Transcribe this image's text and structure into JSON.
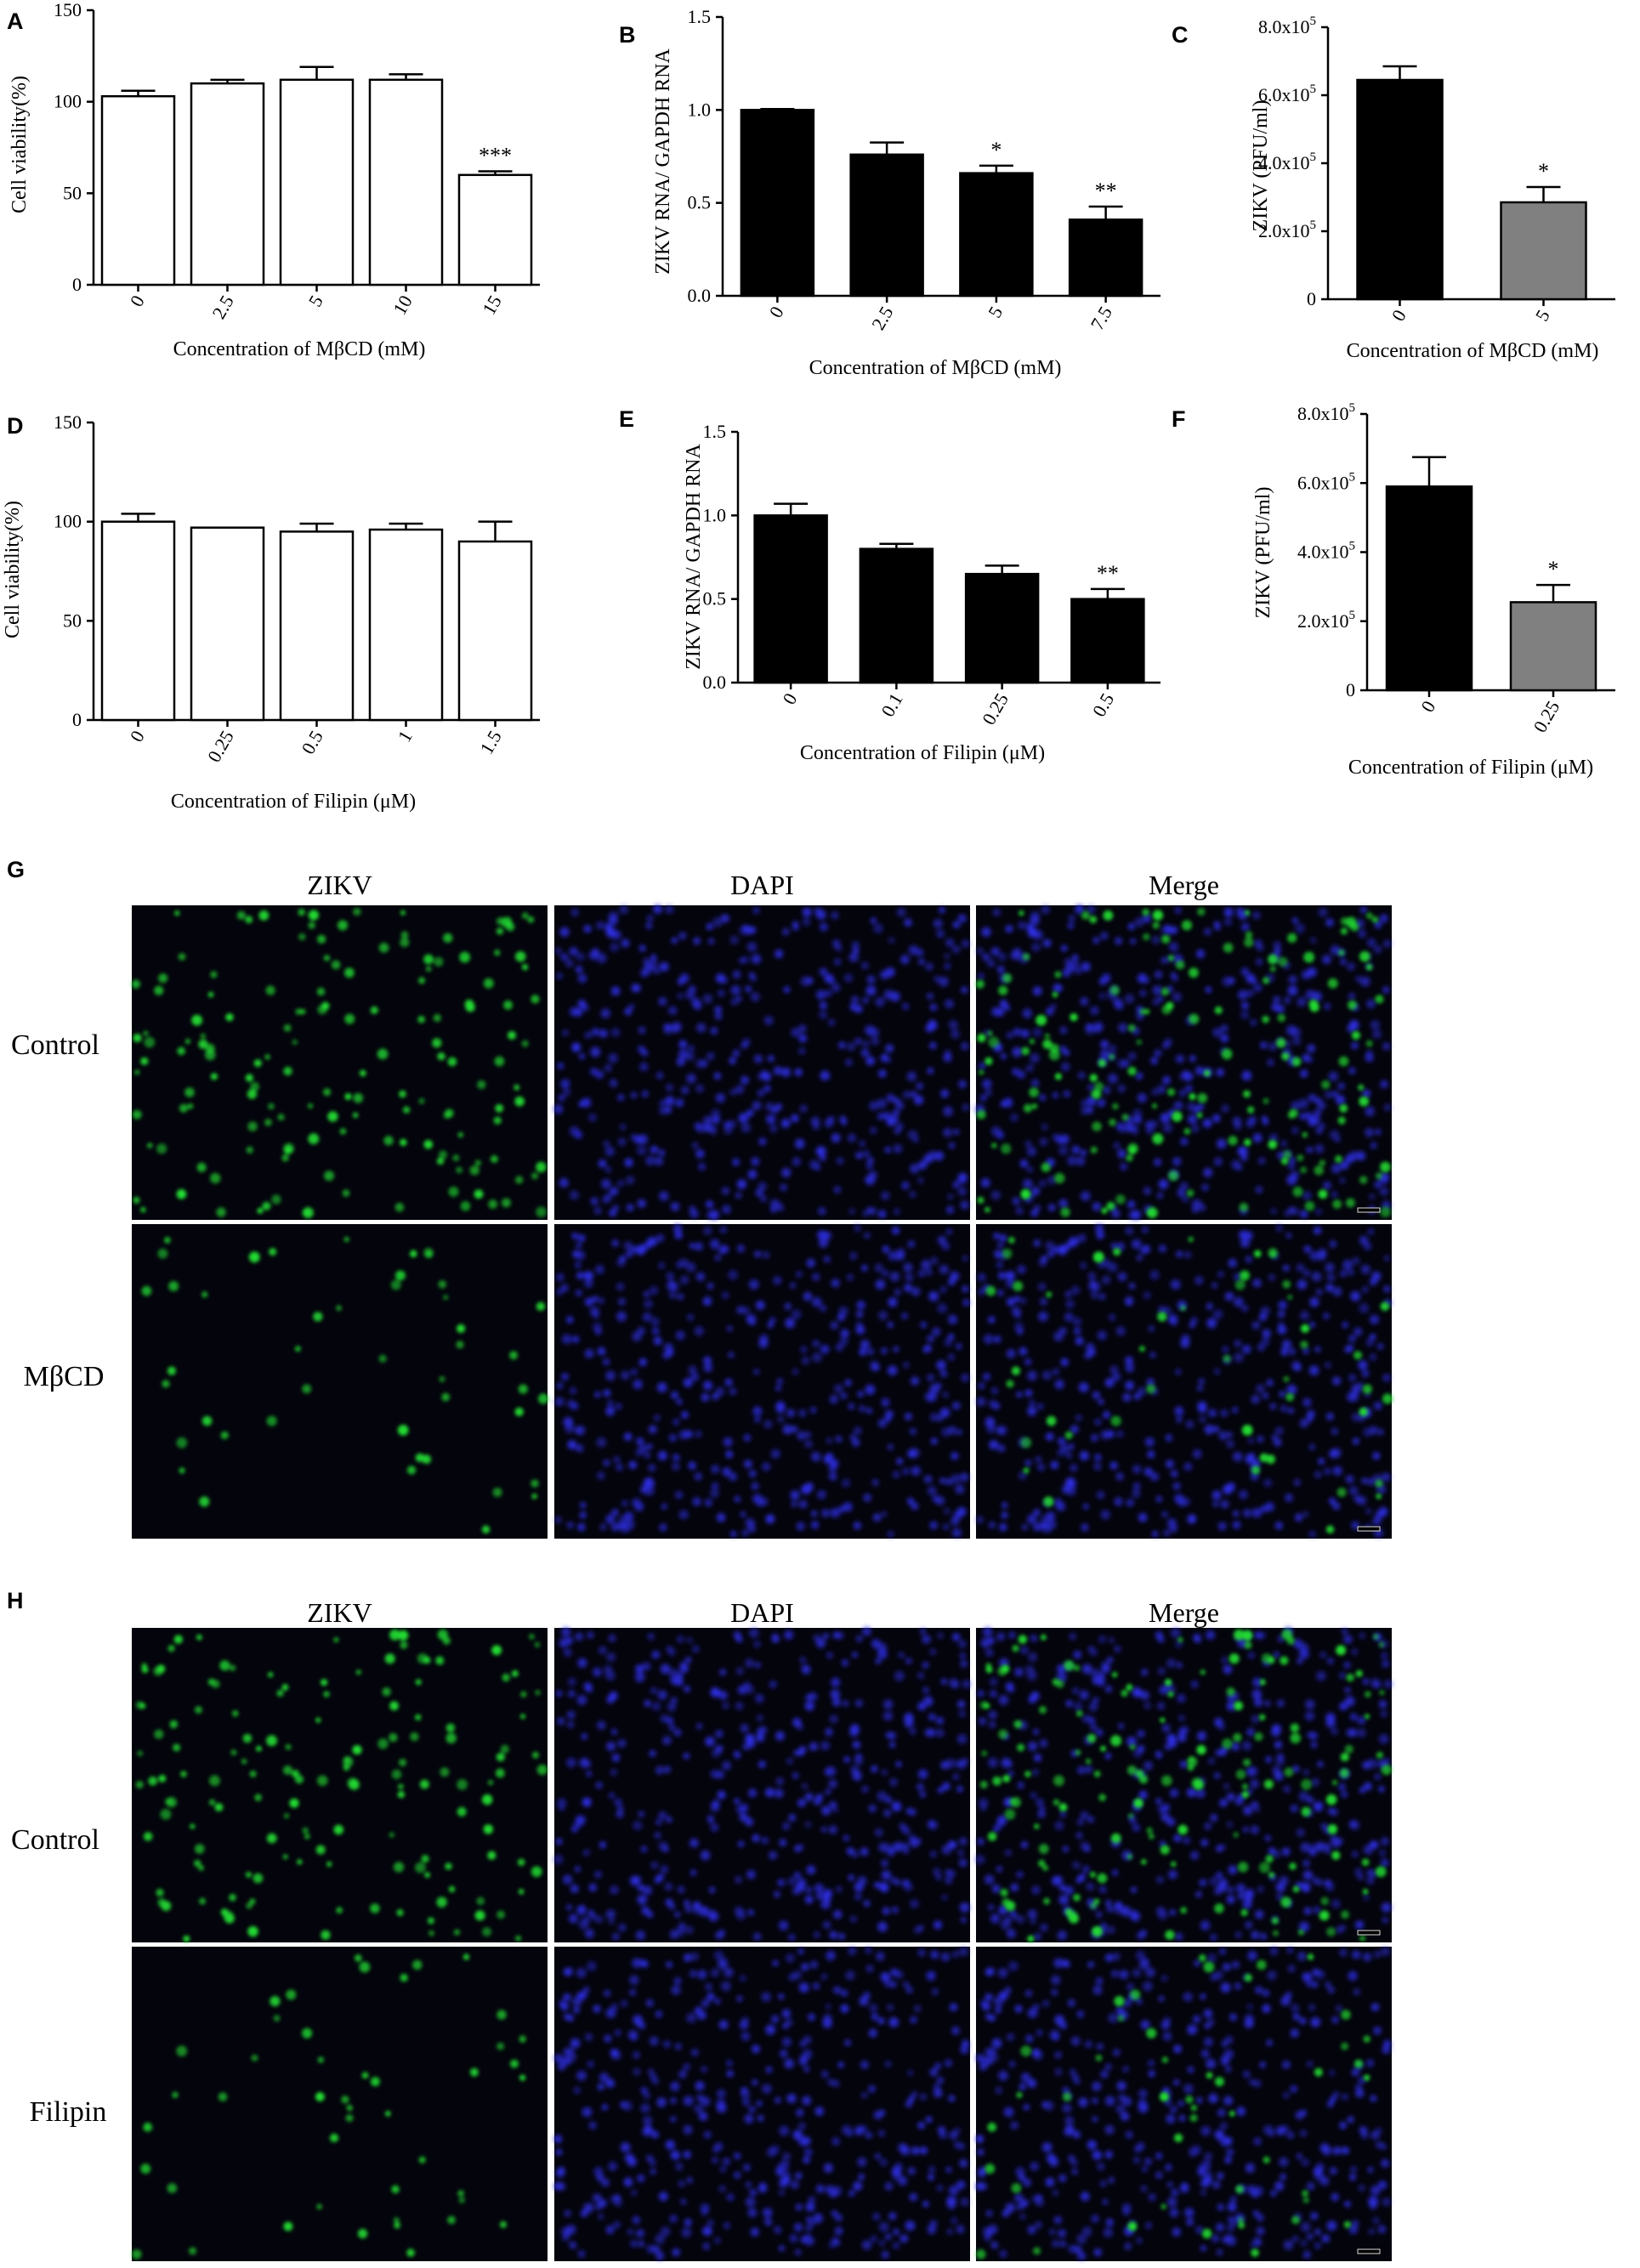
{
  "colors": {
    "black_bar": "#000000",
    "gray_bar": "#808080",
    "open_bar": "#ffffff",
    "zikv_stain": "#22dd33",
    "dapi_stain": "#3030ee",
    "micrograph_bg": "#04040c"
  },
  "chart_data": [
    {
      "id": "A",
      "panel_label": "A",
      "type": "bar",
      "ylabel": "Cell viability(%)",
      "xlabel": "Concentration of MβCD (mM)",
      "yticks": [
        "0",
        "50",
        "100",
        "150"
      ],
      "ylim": [
        0,
        150
      ],
      "categories": [
        "0",
        "2.5",
        "5",
        "10",
        "15"
      ],
      "values": [
        103,
        110,
        112,
        112,
        60
      ],
      "errors": [
        3,
        2,
        7,
        3,
        2
      ],
      "significance": [
        "",
        "",
        "",
        "",
        "***"
      ],
      "bar_color": "white"
    },
    {
      "id": "B",
      "panel_label": "B",
      "type": "bar",
      "ylabel": "ZIKV RNA/ GAPDH RNA",
      "xlabel": "Concentration of MβCD (mM)",
      "yticks": [
        "0.0",
        "0.5",
        "1.0",
        "1.5"
      ],
      "ylim": [
        0,
        1.5
      ],
      "categories": [
        "0",
        "2.5",
        "5",
        "7.5"
      ],
      "values": [
        1.0,
        0.76,
        0.66,
        0.41
      ],
      "errors": [
        0.005,
        0.065,
        0.04,
        0.07
      ],
      "significance": [
        "",
        "",
        "*",
        "**"
      ],
      "bar_color": "black"
    },
    {
      "id": "C",
      "panel_label": "C",
      "type": "bar",
      "ylabel": "ZIKV (PFU/ml)",
      "xlabel": "Concentration of MβCD (mM)",
      "yticks": [
        "0",
        "2.0x10⁵",
        "4.0x10⁵",
        "6.0x10⁵",
        "8.0x10⁵"
      ],
      "ylim": [
        0,
        800000
      ],
      "categories": [
        "0",
        "5"
      ],
      "values": [
        645000,
        285000
      ],
      "errors": [
        40000,
        45000
      ],
      "significance": [
        "",
        "*"
      ],
      "bar_colors": [
        "black",
        "gray"
      ]
    },
    {
      "id": "D",
      "panel_label": "D",
      "type": "bar",
      "ylabel": "Cell viability(%)",
      "xlabel": "Concentration of Filipin (μM)",
      "yticks": [
        "0",
        "50",
        "100",
        "150"
      ],
      "ylim": [
        0,
        150
      ],
      "categories": [
        "0",
        "0.25",
        "0.5",
        "1",
        "1.5"
      ],
      "values": [
        100,
        97,
        95,
        96,
        90
      ],
      "errors": [
        4,
        0,
        4,
        3,
        10
      ],
      "significance": [
        "",
        "",
        "",
        "",
        ""
      ],
      "bar_color": "white"
    },
    {
      "id": "E",
      "panel_label": "E",
      "type": "bar",
      "ylabel": "ZIKV RNA/ GAPDH RNA",
      "xlabel": "Concentration of Filipin (μM)",
      "yticks": [
        "0.0",
        "0.5",
        "1.0",
        "1.5"
      ],
      "ylim": [
        0,
        1.5
      ],
      "categories": [
        "0",
        "0.1",
        "0.25",
        "0.5"
      ],
      "values": [
        1.0,
        0.8,
        0.65,
        0.5
      ],
      "errors": [
        0.07,
        0.03,
        0.05,
        0.06
      ],
      "significance": [
        "",
        "",
        "",
        "**"
      ],
      "bar_color": "black"
    },
    {
      "id": "F",
      "panel_label": "F",
      "type": "bar",
      "ylabel": "ZIKV (PFU/ml)",
      "xlabel": "Concentration of Filipin (μM)",
      "yticks": [
        "0",
        "2.0x10⁵",
        "4.0x10⁵",
        "6.0x10⁵",
        "8.0x10⁵"
      ],
      "ylim": [
        0,
        800000
      ],
      "categories": [
        "0",
        "0.25"
      ],
      "values": [
        590000,
        255000
      ],
      "errors": [
        85000,
        50000
      ],
      "significance": [
        "",
        "*"
      ],
      "bar_colors": [
        "black",
        "gray"
      ]
    }
  ],
  "micrographs": [
    {
      "id": "G",
      "panel_label": "G",
      "columns": [
        "ZIKV",
        "DAPI",
        "Merge"
      ],
      "rows": [
        "Control",
        "MβCD"
      ]
    },
    {
      "id": "H",
      "panel_label": "H",
      "columns": [
        "ZIKV",
        "DAPI",
        "Merge"
      ],
      "rows": [
        "Control",
        "Filipin"
      ]
    }
  ]
}
